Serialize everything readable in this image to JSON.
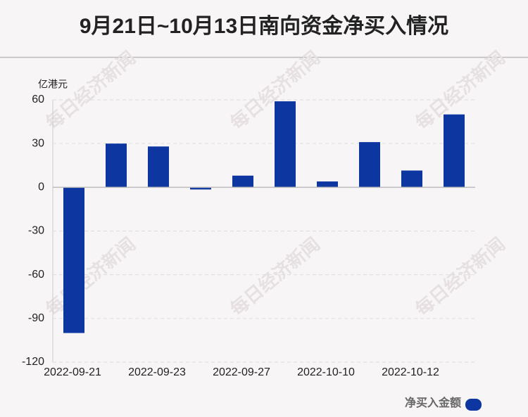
{
  "chart_data": {
    "type": "bar",
    "title": "9月21日~10月13日南向资金净买入情况",
    "y_unit": "亿港元",
    "watermark": "每日经济新闻",
    "categories": [
      "2022-09-21",
      null,
      "2022-09-23",
      null,
      "2022-09-27",
      null,
      "2022-10-10",
      null,
      "2022-10-12",
      null
    ],
    "series": [
      {
        "name": "净买入金额",
        "color": "#0d36a1",
        "values": [
          -100,
          30,
          28,
          -1.5,
          8,
          59,
          4,
          31,
          11.5,
          50
        ]
      }
    ],
    "ylim": [
      -120,
      60
    ],
    "yticks": [
      -120,
      -90,
      -60,
      -30,
      0,
      30,
      60
    ],
    "grid": true,
    "legend": "bottom-right"
  }
}
